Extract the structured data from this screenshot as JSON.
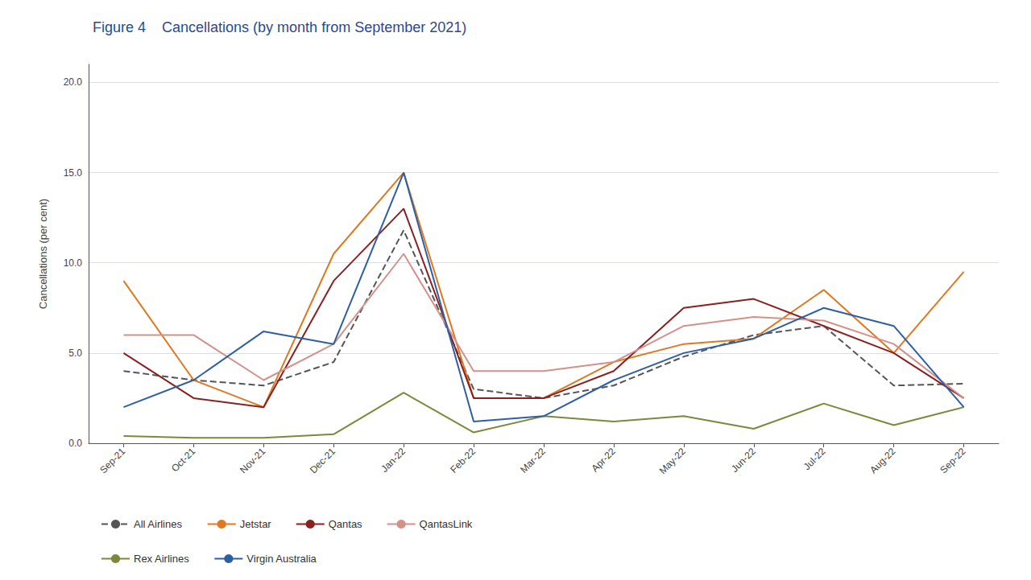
{
  "chart_data": {
    "type": "line",
    "title": "Figure 4    Cancellations (by month from September 2021)",
    "ylabel": "Cancellations (per cent)",
    "categories": [
      "Sep-21",
      "Oct-21",
      "Nov-21",
      "Dec-21",
      "Jan-22",
      "Feb-22",
      "Mar-22",
      "Apr-22",
      "May-22",
      "Jun-22",
      "Jul-22",
      "Aug-22",
      "Sep-22"
    ],
    "series": [
      {
        "name": "All Airlines",
        "color": "#555555",
        "line_style": "dashed",
        "values": [
          4.0,
          3.5,
          3.2,
          4.5,
          11.8,
          3.0,
          2.5,
          3.2,
          4.8,
          6.0,
          6.5,
          3.2,
          3.3
        ]
      },
      {
        "name": "Jetstar",
        "color": "#E07820",
        "line_style": "solid",
        "values": [
          9.0,
          3.5,
          2.0,
          10.5,
          15.0,
          2.5,
          2.5,
          4.5,
          5.5,
          5.8,
          8.5,
          5.0,
          9.5
        ]
      },
      {
        "name": "Qantas",
        "color": "#8B2020",
        "line_style": "solid",
        "values": [
          5.0,
          2.5,
          2.0,
          9.0,
          13.0,
          2.5,
          2.5,
          4.0,
          7.5,
          8.0,
          6.5,
          5.0,
          2.5
        ]
      },
      {
        "name": "QantasLink",
        "color": "#D4918A",
        "line_style": "solid",
        "values": [
          6.0,
          6.0,
          3.5,
          5.5,
          10.5,
          4.0,
          4.0,
          4.5,
          6.5,
          7.0,
          6.8,
          5.5,
          2.5
        ]
      },
      {
        "name": "Rex Airlines",
        "color": "#7A8A3A",
        "line_style": "solid",
        "values": [
          0.4,
          0.3,
          0.3,
          0.5,
          2.8,
          0.6,
          1.5,
          1.2,
          1.5,
          0.8,
          2.2,
          1.0,
          2.0
        ]
      },
      {
        "name": "Virgin Australia",
        "color": "#2E5FA3",
        "line_style": "solid",
        "values": [
          2.0,
          3.5,
          6.2,
          5.5,
          15.0,
          1.2,
          1.5,
          3.5,
          5.0,
          5.8,
          7.5,
          6.5,
          2.0
        ]
      }
    ],
    "ylim": [
      0.0,
      21.0
    ],
    "yticks": [
      {
        "value": 0.0,
        "label": "0.0"
      },
      {
        "value": 5.0,
        "label": "5.0"
      },
      {
        "value": 10.0,
        "label": "10.0"
      },
      {
        "value": 15.0,
        "label": "15.0"
      },
      {
        "value": 20.0,
        "label": "20.0"
      }
    ],
    "grid": true,
    "legend": "bottom"
  }
}
